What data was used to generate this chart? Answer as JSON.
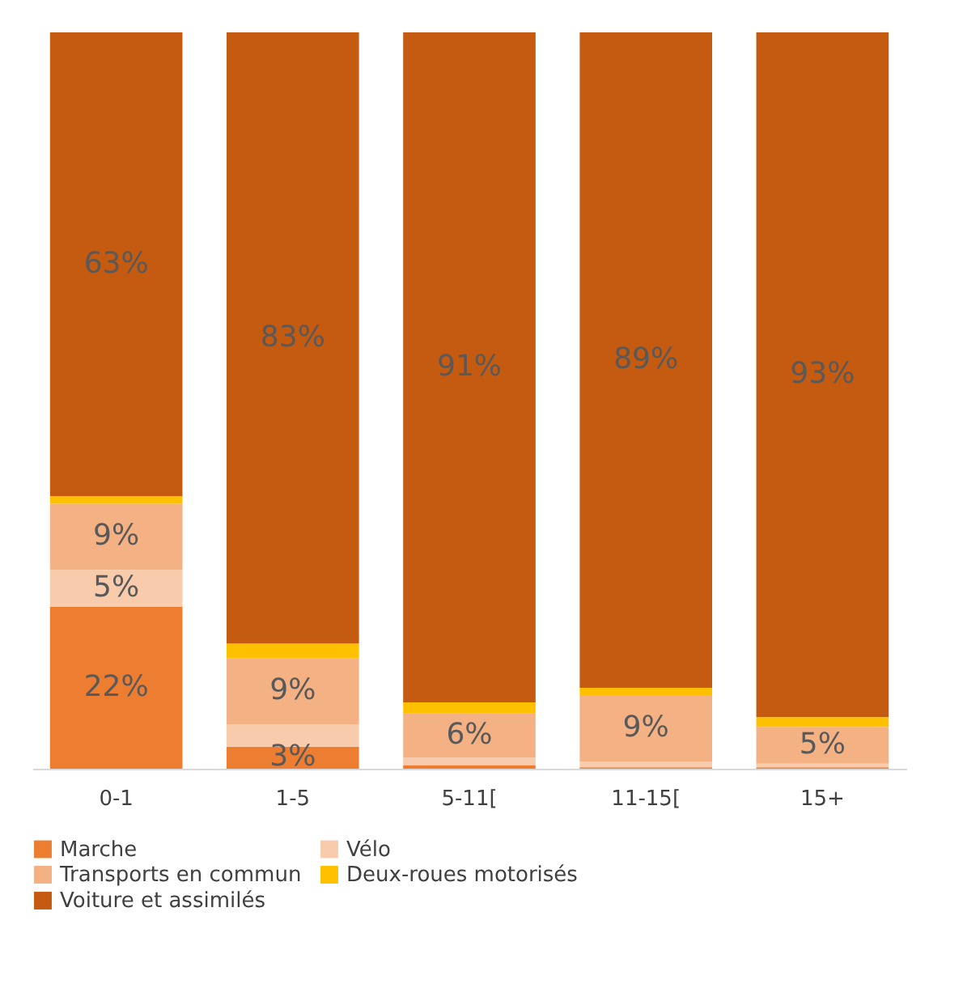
{
  "chart_data": {
    "type": "bar",
    "stacked": true,
    "legend": "bottom",
    "grid": false,
    "categories": [
      "0-1",
      "1-5",
      "5-11[",
      "11-15[",
      "15+"
    ],
    "series": [
      {
        "name": "Marche",
        "color": "#ed7d31",
        "values": [
          22,
          3,
          0.5,
          0.2,
          0.2
        ],
        "value_labels": [
          "22%",
          "3%",
          null,
          null,
          null
        ]
      },
      {
        "name": "Vélo",
        "color": "#f8cbad",
        "values": [
          5,
          3,
          1,
          0.8,
          0.5
        ],
        "value_labels": [
          "5%",
          null,
          null,
          null,
          null
        ]
      },
      {
        "name": "Transports en commun",
        "color": "#f4b183",
        "values": [
          9,
          9,
          6,
          9,
          5
        ],
        "value_labels": [
          "9%",
          "9%",
          "6%",
          "9%",
          "5%"
        ]
      },
      {
        "name": "Deux-roues motorisés",
        "color": "#ffc000",
        "values": [
          1,
          2,
          1.5,
          1,
          1.3
        ],
        "value_labels": [
          null,
          null,
          null,
          null,
          null
        ]
      },
      {
        "name": "Voiture et assimilés",
        "color": "#c55a11",
        "values": [
          63,
          83,
          91,
          89,
          93
        ],
        "value_labels": [
          "63%",
          "83%",
          "91%",
          "89%",
          "93%"
        ]
      }
    ]
  }
}
